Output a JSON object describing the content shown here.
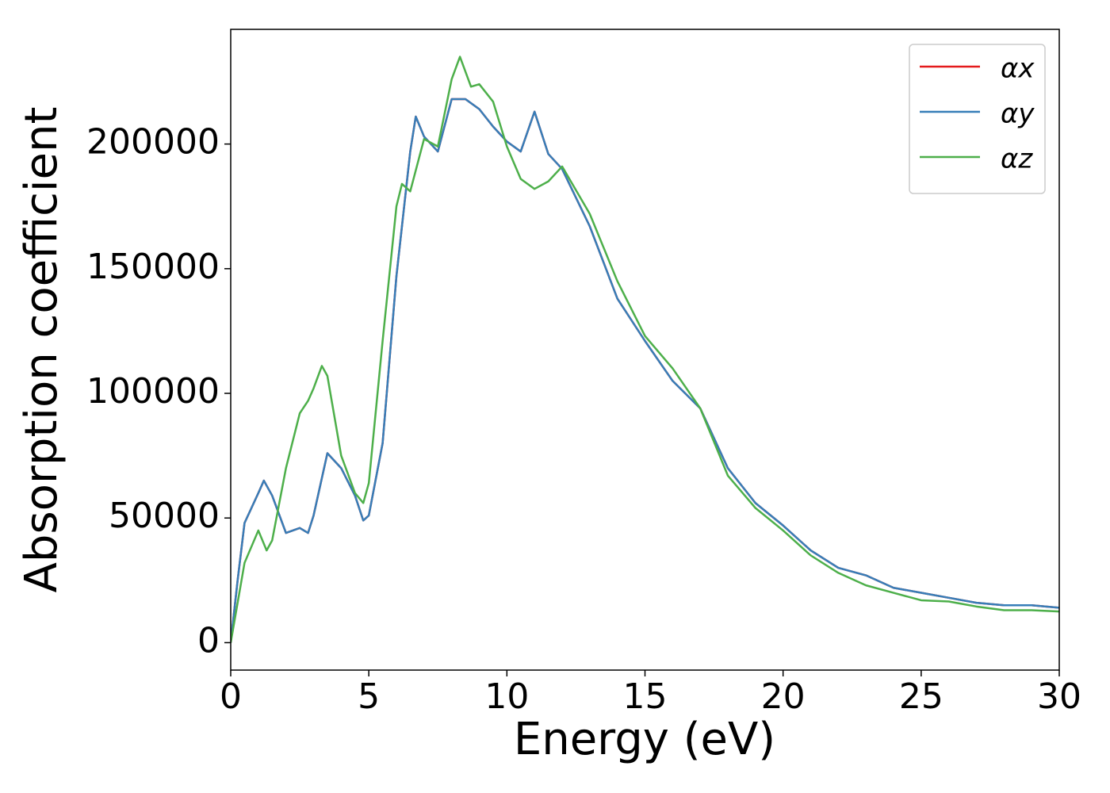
{
  "chart_data": {
    "type": "line",
    "xlabel": "Energy (eV)",
    "ylabel": "Absorption coefficient",
    "xlim": [
      0,
      30
    ],
    "xticks": [
      0,
      5,
      10,
      15,
      20,
      25,
      30
    ],
    "ylim": [
      -11000,
      246000
    ],
    "yticks": [
      0,
      50000,
      100000,
      150000,
      200000
    ],
    "legend": "upper right",
    "grid": false,
    "series": [
      {
        "name": "αx",
        "color": "#e41a1c",
        "x": [
          0,
          0.25,
          0.5,
          1.0,
          1.2,
          1.5,
          2.0,
          2.5,
          2.8,
          3.0,
          3.5,
          4.0,
          4.5,
          4.8,
          5.0,
          5.5,
          6.0,
          6.5,
          6.7,
          7.0,
          7.5,
          8.0,
          8.5,
          9.0,
          9.5,
          10.0,
          10.5,
          11.0,
          11.5,
          12.0,
          13.0,
          14.0,
          15.0,
          16.0,
          17.0,
          18.0,
          19.0,
          20.0,
          21.0,
          22.0,
          23.0,
          24.0,
          25.0,
          26.0,
          27.0,
          28.0,
          29.0,
          30.0
        ],
        "values": [
          0,
          25000,
          48000,
          60000,
          65000,
          59000,
          44000,
          46000,
          44000,
          51000,
          76000,
          70000,
          59000,
          49000,
          51000,
          80000,
          147000,
          197000,
          211000,
          203000,
          197000,
          218000,
          218000,
          214000,
          207000,
          201000,
          197000,
          213000,
          196000,
          190000,
          167000,
          138000,
          121000,
          105000,
          94000,
          70000,
          56000,
          47000,
          37000,
          30000,
          27000,
          22000,
          20000,
          18000,
          16000,
          15000,
          15000,
          14000
        ]
      },
      {
        "name": "αy",
        "color": "#377eb8",
        "x": [
          0,
          0.25,
          0.5,
          1.0,
          1.2,
          1.5,
          2.0,
          2.5,
          2.8,
          3.0,
          3.5,
          4.0,
          4.5,
          4.8,
          5.0,
          5.5,
          6.0,
          6.5,
          6.7,
          7.0,
          7.5,
          8.0,
          8.5,
          9.0,
          9.5,
          10.0,
          10.5,
          11.0,
          11.5,
          12.0,
          13.0,
          14.0,
          15.0,
          16.0,
          17.0,
          18.0,
          19.0,
          20.0,
          21.0,
          22.0,
          23.0,
          24.0,
          25.0,
          26.0,
          27.0,
          28.0,
          29.0,
          30.0
        ],
        "values": [
          0,
          25000,
          48000,
          60000,
          65000,
          59000,
          44000,
          46000,
          44000,
          51000,
          76000,
          70000,
          59000,
          49000,
          51000,
          80000,
          147000,
          197000,
          211000,
          203000,
          197000,
          218000,
          218000,
          214000,
          207000,
          201000,
          197000,
          213000,
          196000,
          190000,
          167000,
          138000,
          121000,
          105000,
          94000,
          70000,
          56000,
          47000,
          37000,
          30000,
          27000,
          22000,
          20000,
          18000,
          16000,
          15000,
          15000,
          14000
        ]
      },
      {
        "name": "αz",
        "color": "#4daf4a",
        "x": [
          0,
          0.25,
          0.5,
          1.0,
          1.3,
          1.5,
          2.0,
          2.5,
          2.8,
          3.0,
          3.3,
          3.5,
          4.0,
          4.5,
          4.8,
          5.0,
          5.5,
          6.0,
          6.2,
          6.5,
          7.0,
          7.5,
          8.0,
          8.3,
          8.7,
          9.0,
          9.5,
          10.0,
          10.5,
          11.0,
          11.5,
          12.0,
          13.0,
          14.0,
          15.0,
          16.0,
          17.0,
          18.0,
          19.0,
          20.0,
          21.0,
          22.0,
          23.0,
          24.0,
          25.0,
          26.0,
          27.0,
          28.0,
          29.0,
          30.0
        ],
        "values": [
          0,
          16000,
          32000,
          45000,
          37000,
          41000,
          70000,
          92000,
          97000,
          102000,
          111000,
          107000,
          75000,
          60000,
          56000,
          64000,
          121000,
          175000,
          184000,
          181000,
          202000,
          199000,
          226000,
          235000,
          223000,
          224000,
          217000,
          199000,
          186000,
          182000,
          185000,
          191000,
          172000,
          145000,
          123000,
          110000,
          94000,
          67000,
          54000,
          45000,
          35000,
          28000,
          23000,
          20000,
          17000,
          16500,
          14500,
          13000,
          13000,
          12500
        ]
      }
    ]
  }
}
